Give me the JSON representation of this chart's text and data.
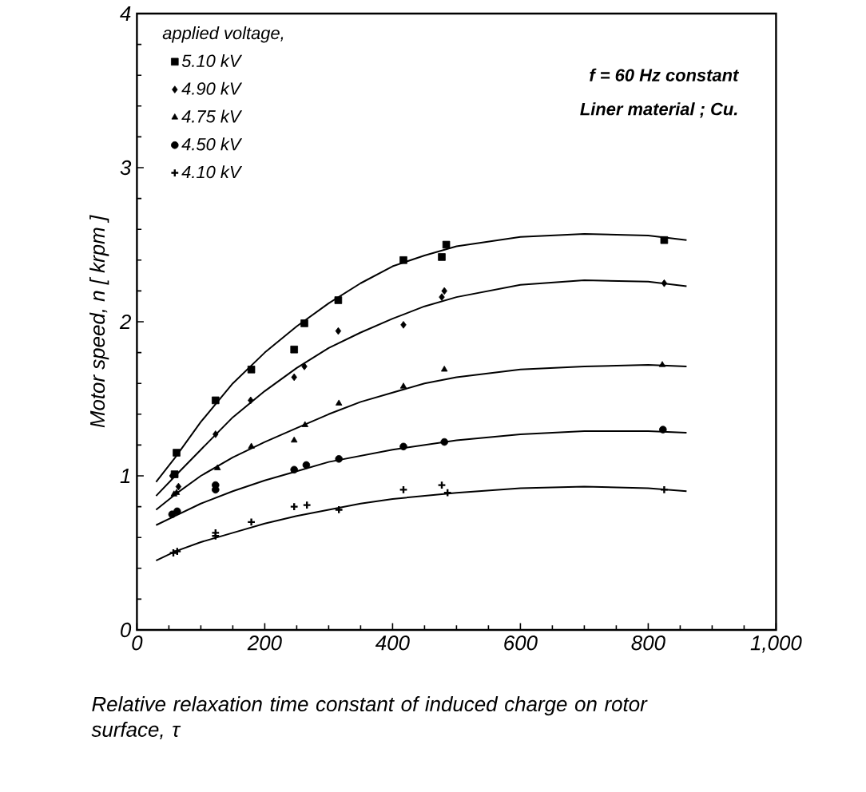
{
  "chart_data": {
    "type": "scatter",
    "xlabel": "Relative relaxation time constant of induced charge on rotor surface, τ",
    "ylabel": "Motor speed, n [ krpm ]",
    "legend_title": "applied voltage,",
    "annotations": [
      "f = 60 Hz constant",
      "Liner material ; Cu."
    ],
    "xlim": [
      0,
      1000
    ],
    "ylim": [
      0,
      4
    ],
    "xticks": [
      0,
      200,
      400,
      600,
      800,
      {
        "value": 1000,
        "label": "1,000"
      }
    ],
    "yticks": [
      0,
      1,
      2,
      3,
      4
    ],
    "legend": "top left",
    "grid": false,
    "series": [
      {
        "name": "5.10 kV",
        "color": "#000000",
        "marker": "square",
        "x": [
          59,
          62,
          123,
          179,
          246,
          262,
          315,
          417,
          477,
          484,
          825
        ],
        "values": [
          1.01,
          1.15,
          1.49,
          1.69,
          1.82,
          1.99,
          2.14,
          2.4,
          2.42,
          2.5,
          2.53
        ]
      },
      {
        "name": "4.90 kV",
        "color": "#000000",
        "marker": "diamond",
        "x": [
          55,
          65,
          123,
          178,
          246,
          262,
          315,
          417,
          477,
          481,
          825
        ],
        "values": [
          1.0,
          0.93,
          1.27,
          1.49,
          1.64,
          1.71,
          1.94,
          1.98,
          2.16,
          2.2,
          2.25
        ]
      },
      {
        "name": "4.75 kV",
        "color": "#000000",
        "marker": "triangle",
        "x": [
          58,
          62,
          126,
          179,
          246,
          263,
          316,
          417,
          481,
          822
        ],
        "values": [
          0.88,
          0.89,
          1.05,
          1.19,
          1.23,
          1.33,
          1.47,
          1.58,
          1.69,
          1.72
        ]
      },
      {
        "name": "4.50 kV",
        "color": "#000000",
        "marker": "circle",
        "x": [
          55,
          63,
          123,
          123,
          246,
          265,
          316,
          417,
          481,
          823
        ],
        "values": [
          0.75,
          0.77,
          0.94,
          0.91,
          1.04,
          1.07,
          1.11,
          1.19,
          1.22,
          1.3
        ]
      },
      {
        "name": "4.10 kV",
        "color": "#000000",
        "marker": "cross",
        "x": [
          57,
          63,
          123,
          123,
          179,
          246,
          266,
          316,
          417,
          477,
          486,
          825
        ],
        "values": [
          0.5,
          0.51,
          0.61,
          0.63,
          0.7,
          0.8,
          0.81,
          0.78,
          0.91,
          0.94,
          0.89,
          0.91
        ]
      },
      {
        "type": "line",
        "color": "#000000",
        "marker": "none",
        "x": [
          30,
          60,
          100,
          150,
          200,
          250,
          300,
          350,
          400,
          450,
          500,
          600,
          700,
          800,
          860
        ],
        "values": [
          0.96,
          1.12,
          1.35,
          1.6,
          1.8,
          1.97,
          2.12,
          2.25,
          2.36,
          2.43,
          2.49,
          2.55,
          2.57,
          2.56,
          2.53
        ]
      },
      {
        "type": "line",
        "color": "#000000",
        "marker": "none",
        "x": [
          30,
          60,
          100,
          150,
          200,
          250,
          300,
          350,
          400,
          450,
          500,
          600,
          700,
          800,
          860
        ],
        "values": [
          0.87,
          1.0,
          1.17,
          1.38,
          1.55,
          1.7,
          1.83,
          1.93,
          2.02,
          2.1,
          2.16,
          2.24,
          2.27,
          2.26,
          2.23
        ]
      },
      {
        "type": "line",
        "color": "#000000",
        "marker": "none",
        "x": [
          30,
          60,
          100,
          150,
          200,
          250,
          300,
          350,
          400,
          450,
          500,
          600,
          700,
          800,
          860
        ],
        "values": [
          0.78,
          0.88,
          1.0,
          1.12,
          1.22,
          1.31,
          1.4,
          1.48,
          1.54,
          1.6,
          1.64,
          1.69,
          1.71,
          1.72,
          1.71
        ]
      },
      {
        "type": "line",
        "color": "#000000",
        "marker": "none",
        "x": [
          30,
          60,
          100,
          150,
          200,
          250,
          300,
          350,
          400,
          450,
          500,
          600,
          700,
          800,
          860
        ],
        "values": [
          0.68,
          0.74,
          0.82,
          0.9,
          0.97,
          1.03,
          1.09,
          1.13,
          1.17,
          1.2,
          1.23,
          1.27,
          1.29,
          1.29,
          1.28
        ]
      },
      {
        "type": "line",
        "color": "#000000",
        "marker": "none",
        "x": [
          30,
          60,
          100,
          150,
          200,
          250,
          300,
          350,
          400,
          450,
          500,
          600,
          700,
          800,
          860
        ],
        "values": [
          0.45,
          0.51,
          0.57,
          0.63,
          0.69,
          0.74,
          0.78,
          0.82,
          0.85,
          0.87,
          0.89,
          0.92,
          0.93,
          0.92,
          0.9
        ]
      }
    ]
  }
}
